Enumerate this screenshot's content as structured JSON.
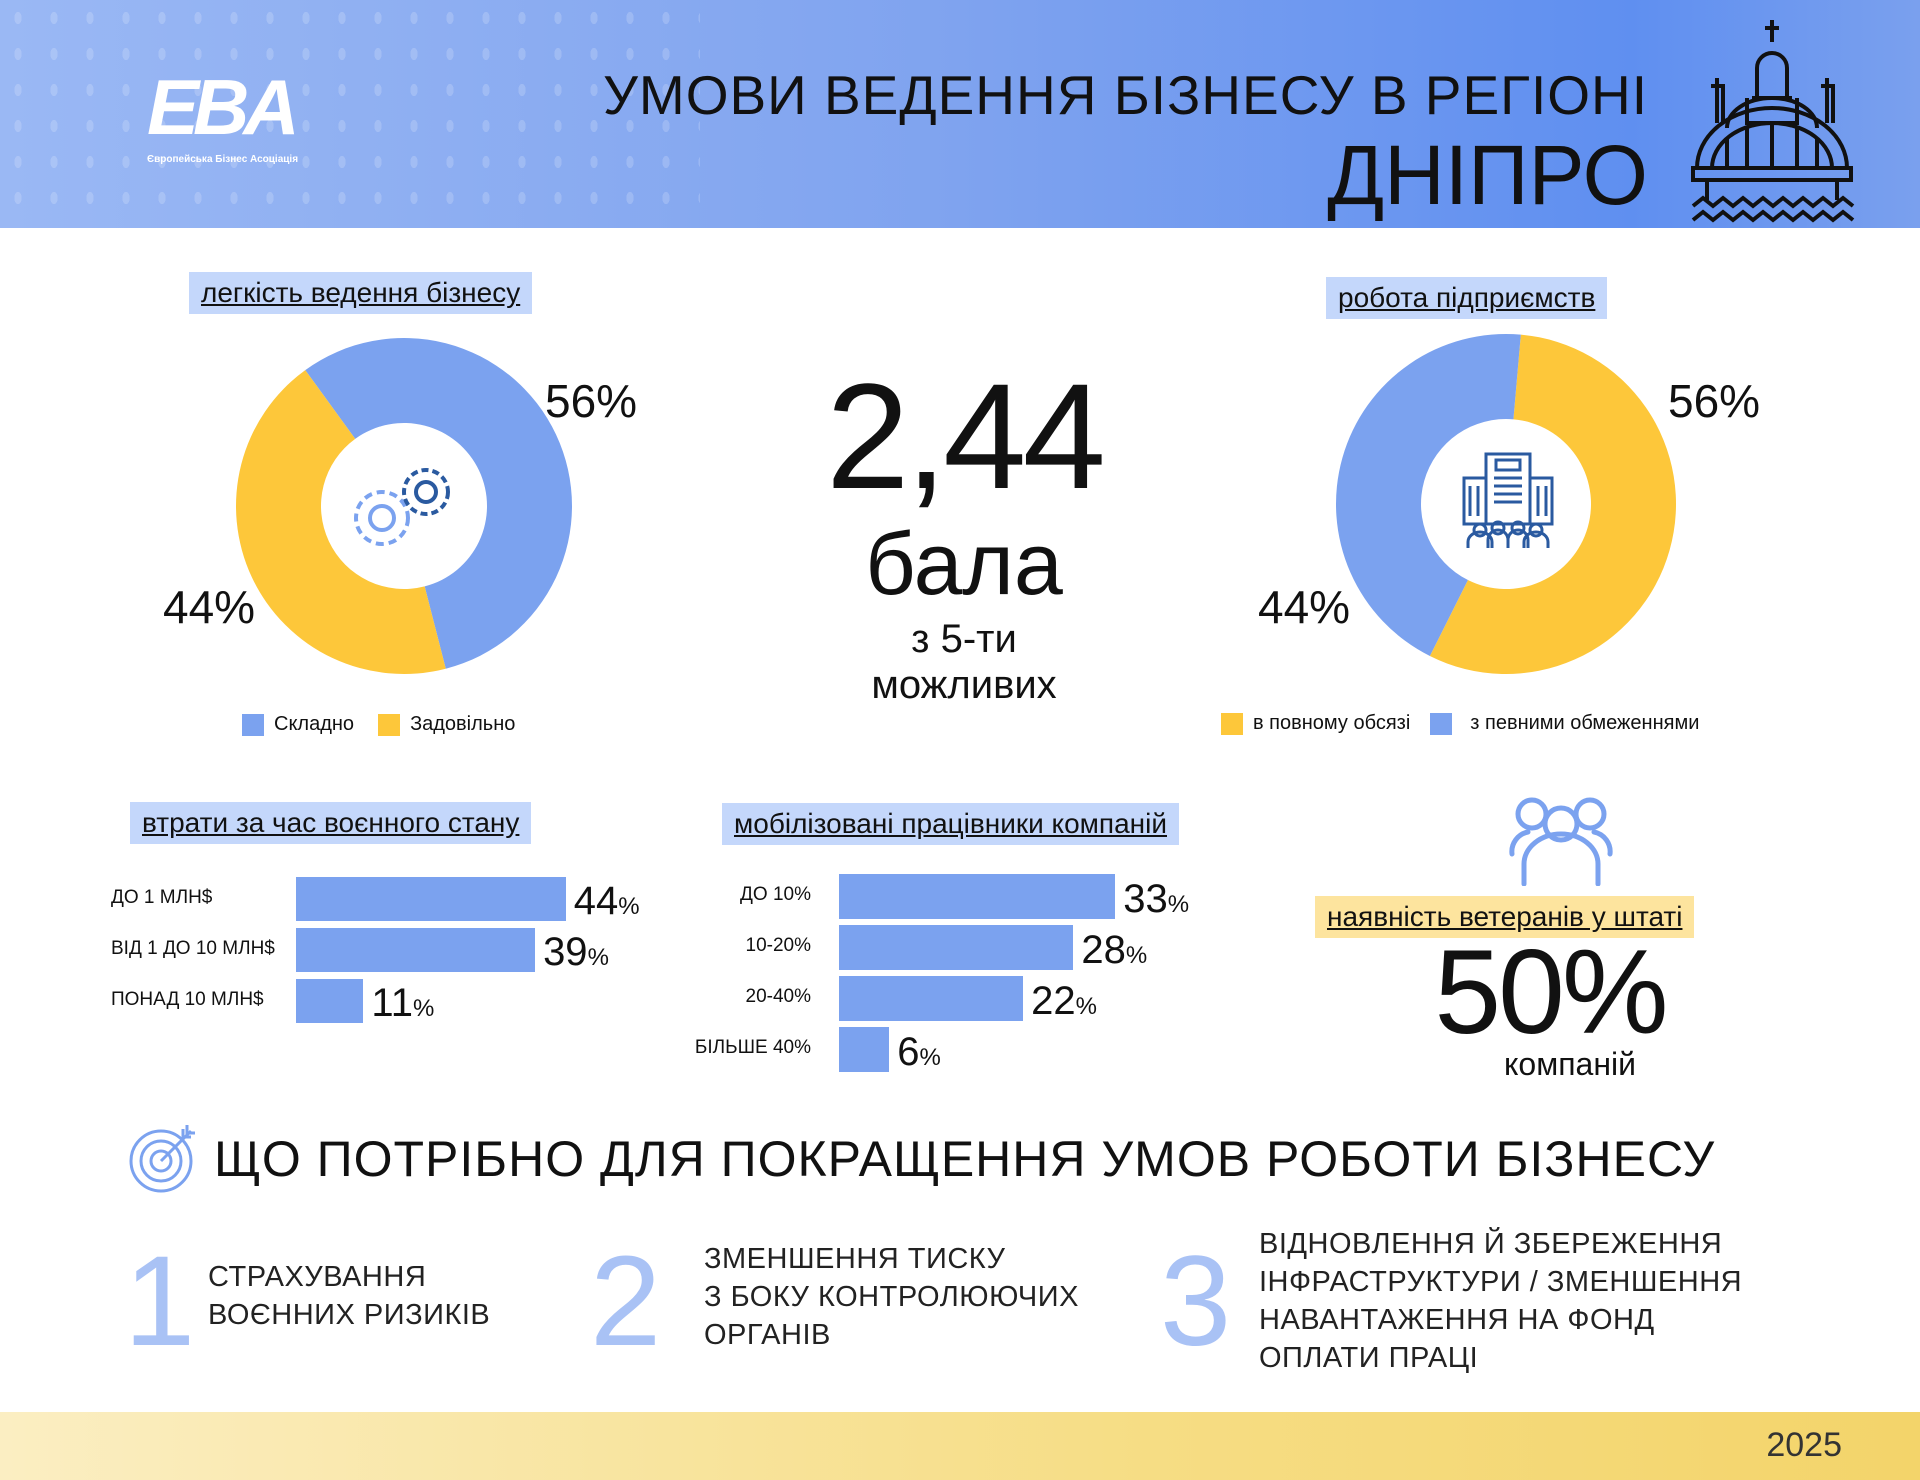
{
  "header": {
    "logo": "EBA",
    "logo_sub": "Європейська Бізнес Асоціація",
    "title": "УМОВИ ВЕДЕННЯ БІЗНЕСУ В РЕГІОНІ",
    "region": "ДНІПРО"
  },
  "colors": {
    "blue": "#7ba2ef",
    "yellow": "#fdc73a"
  },
  "score": {
    "value": "2,44",
    "unit": "бала",
    "sub1": "з 5-ти",
    "sub2": "можливих"
  },
  "veterans": {
    "label": "наявність ветеранів у штаті",
    "value": "50%",
    "sub": "компаній"
  },
  "improve": {
    "title": "ЩО ПОТРІБНО ДЛЯ ПОКРАЩЕННЯ УМОВ РОБОТИ БІЗНЕСУ",
    "items": [
      {
        "n": "1",
        "lines": [
          "СТРАХУВАННЯ",
          "ВОЄННИХ РИЗИКІВ"
        ]
      },
      {
        "n": "2",
        "lines": [
          "ЗМЕНШЕННЯ ТИСКУ",
          "З БОКУ КОНТРОЛЮЮЧИХ",
          "ОРГАНІВ"
        ]
      },
      {
        "n": "3",
        "lines": [
          "ВІДНОВЛЕННЯ Й ЗБЕРЕЖЕННЯ",
          "ІНФРАСТРУКТУРИ / ЗМЕНШЕННЯ",
          "НАВАНТАЖЕННЯ НА ФОНД",
          "ОПЛАТИ ПРАЦІ"
        ]
      }
    ]
  },
  "footer": {
    "year": "2025"
  },
  "chart_data": [
    {
      "type": "pie",
      "title": "легкість ведення бізнесу",
      "slices": [
        {
          "name": "Складно",
          "value": 56,
          "label": "56%",
          "color": "#7ba2ef"
        },
        {
          "name": "Задовільно",
          "value": 44,
          "label": "44%",
          "color": "#fdc73a"
        }
      ]
    },
    {
      "type": "pie",
      "title": "робота підприємств",
      "slices": [
        {
          "name": "в повному обсязі",
          "value": 56,
          "label": "56%",
          "color": "#fdc73a"
        },
        {
          "name": "з певними обмеженнями",
          "value": 44,
          "label": "44%",
          "color": "#7ba2ef"
        }
      ]
    },
    {
      "type": "bar",
      "title": "втрати за час воєнного стану",
      "categories": [
        "ДО 1 МЛН$",
        "ВІД 1 ДО 10 МЛН$",
        "ПОНАД 10 МЛН$"
      ],
      "values": [
        44,
        39,
        11
      ],
      "unit": "%"
    },
    {
      "type": "bar",
      "title": "мобілізовані працівники компаній",
      "categories": [
        "ДО 10%",
        "10-20%",
        "20-40%",
        "БІЛЬШЕ 40%"
      ],
      "values": [
        33,
        28,
        22,
        6
      ],
      "unit": "%"
    }
  ]
}
